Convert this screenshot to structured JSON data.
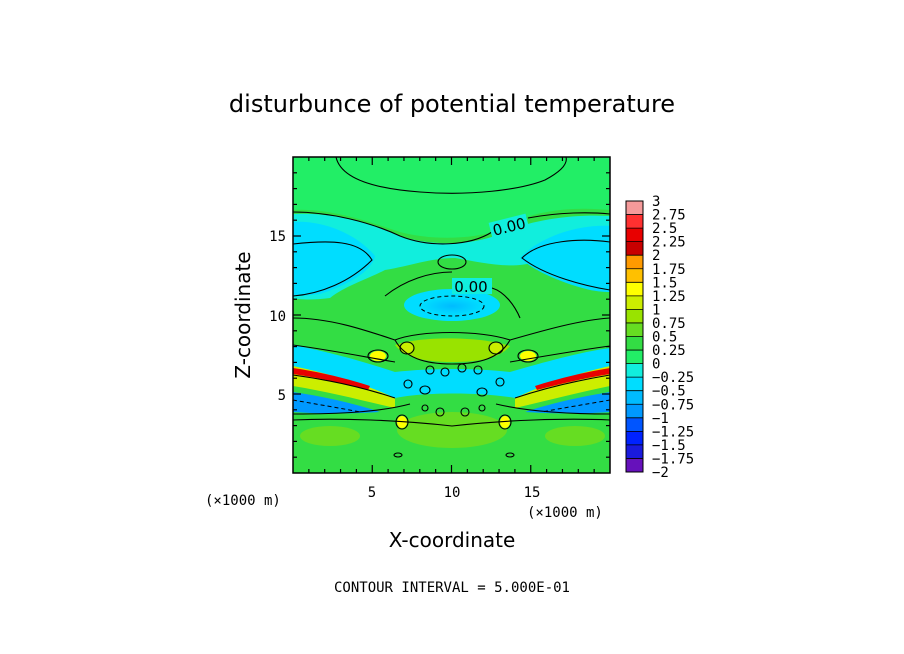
{
  "chart_data": {
    "type": "heatmap",
    "title": "disturbunce of potential temperature",
    "xlabel": "X-coordinate",
    "ylabel": "Z-coordinate",
    "x_unit_label": "(×1000 m)",
    "z_unit_label": "(×1000 m)",
    "xlim": [
      0,
      20
    ],
    "ylim": [
      0,
      20
    ],
    "x_ticks": [
      5,
      10,
      15
    ],
    "y_ticks": [
      5,
      10,
      15
    ],
    "contour_interval_label": "CONTOUR INTERVAL = 5.000E-01",
    "contour_labels": [
      "0.00",
      "0.00"
    ],
    "colorbar": {
      "ticks": [
        "3",
        "2.75",
        "2.5",
        "2.25",
        "2",
        "1.75",
        "1.5",
        "1.25",
        "1",
        "0.75",
        "0.5",
        "0.25",
        "0",
        "−0.25",
        "−0.5",
        "−0.75",
        "−1",
        "−1.25",
        "−1.5",
        "−1.75",
        "−2"
      ],
      "colors": [
        "#f59a9a",
        "#ff3030",
        "#e80000",
        "#c80000",
        "#ff9a00",
        "#ffc000",
        "#ffff00",
        "#ccee00",
        "#99e300",
        "#66dd22",
        "#33dd44",
        "#22ee66",
        "#11eedd",
        "#00ddff",
        "#00bbff",
        "#0099ff",
        "#0055ff",
        "#0022ff",
        "#1a1add",
        "#6611bb"
      ]
    }
  }
}
